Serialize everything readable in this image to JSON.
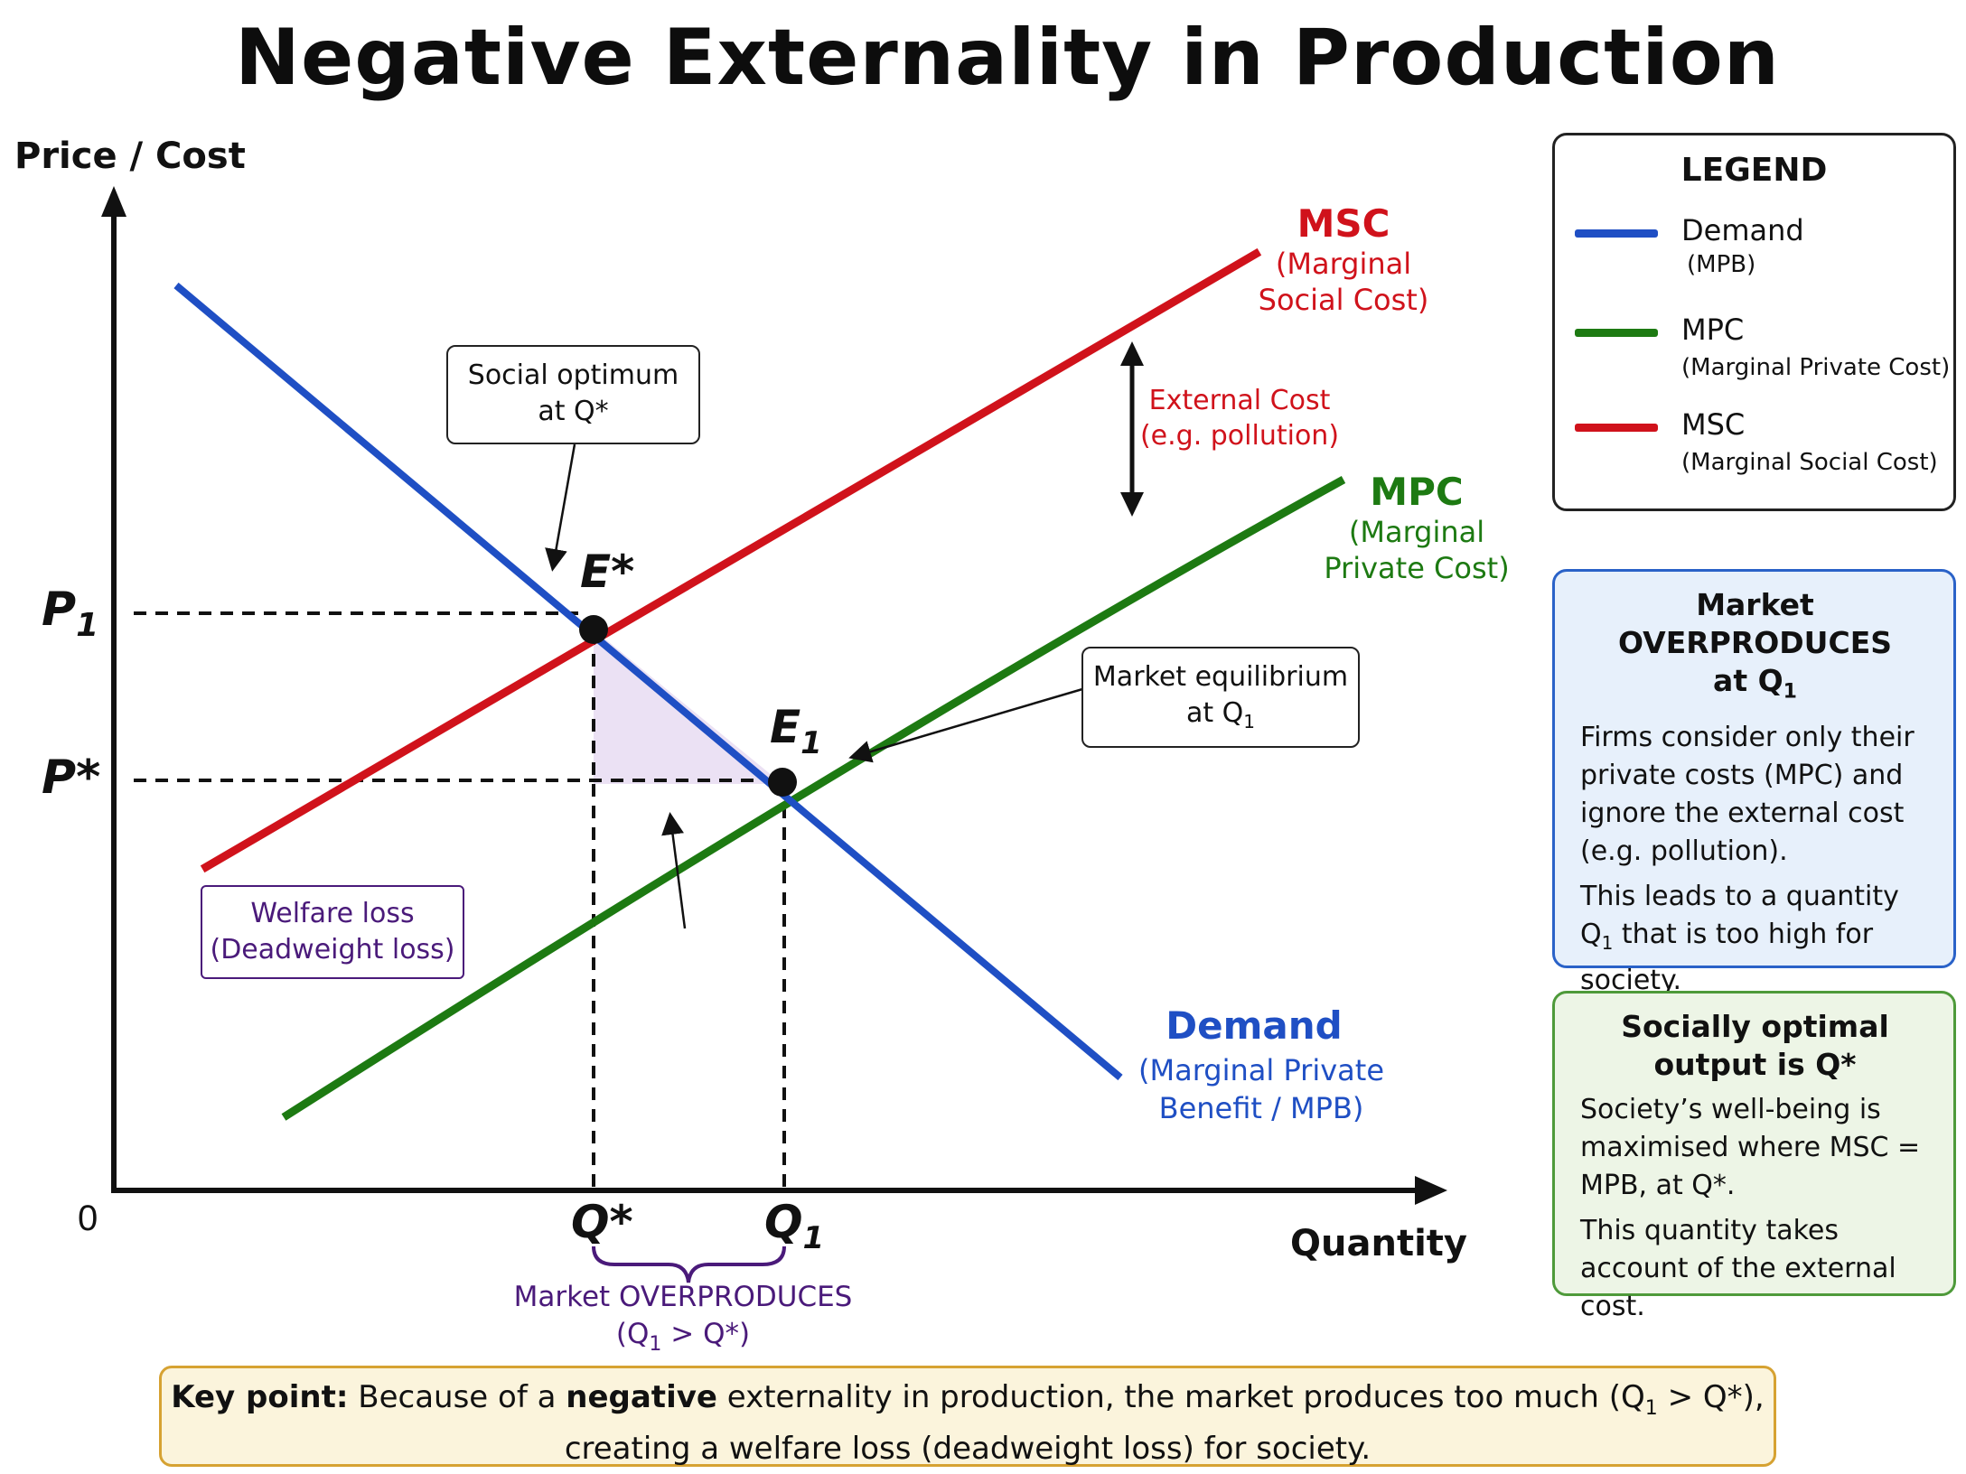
{
  "title": "Negative Externality in Production",
  "axes": {
    "y_label": "Price / Cost",
    "x_label": "Quantity",
    "origin": "0",
    "p1": "P",
    "p1_sub": "1",
    "pstar": "P*",
    "qstar": "Q*",
    "q1": "Q",
    "q1_sub": "1"
  },
  "points": {
    "estar": "E*",
    "e1": "E",
    "e1_sub": "1"
  },
  "curves": {
    "msc_name": "MSC",
    "msc_desc1": "(Marginal",
    "msc_desc2": "Social Cost)",
    "mpc_name": "MPC",
    "mpc_desc1": "(Marginal",
    "mpc_desc2": "Private Cost)",
    "demand_name": "Demand",
    "demand_desc1": "(Marginal Private",
    "demand_desc2": "Benefit / MPB)",
    "external_cost_1": "External Cost",
    "external_cost_2": "(e.g. pollution)"
  },
  "callouts": {
    "social_optimum_1": "Social optimum",
    "social_optimum_2": "at Q*",
    "market_eq_1": "Market equilibrium",
    "market_eq_2": "at Q",
    "market_eq_sub": "1",
    "welfare_1": "Welfare loss",
    "welfare_2": "(Deadweight loss)",
    "overproduces_1": "Market OVERPRODUCES",
    "overproduces_2a": "(Q",
    "overproduces_sub": "1",
    "overproduces_2b": " > Q*)"
  },
  "legend": {
    "title": "LEGEND",
    "items": [
      {
        "name": "Demand",
        "sub": "(MPB)",
        "color": "#1f4fc4"
      },
      {
        "name": "MPC",
        "sub": "(Marginal Private Cost)",
        "color": "#1d7a12"
      },
      {
        "name": "MSC",
        "sub": "(Marginal Social Cost)",
        "color": "#d0121b"
      }
    ]
  },
  "panel_over": {
    "title_a": "Market OVERPRODUCES",
    "title_b": "at Q",
    "title_sub": "1",
    "p1": "Firms consider only their private costs (MPC) and ignore the external cost (e.g. pollution).",
    "p2a": "This leads to a quantity Q",
    "p2_sub": "1",
    "p2b": " that is too high for society."
  },
  "panel_opt": {
    "title_a": "Socially optimal",
    "title_b": "output is Q*",
    "p1": "Society’s well-being is maximised where MSC = MPB, at Q*.",
    "p2": "This quantity takes account of the external cost."
  },
  "keypoint": {
    "label": "Key point:",
    "t1": " Because of a ",
    "t_bold": "negative",
    "t2": " externality in production, the market produces too much (Q",
    "t_sub": "1",
    "t3": " > Q*),",
    "line2": "creating a welfare loss (deadweight loss) for society."
  },
  "colors": {
    "demand": "#1f4fc4",
    "mpc": "#1d7a12",
    "msc": "#d0121b",
    "welfare": "#4a1a7a",
    "welfare_fill": "#e9def3"
  }
}
